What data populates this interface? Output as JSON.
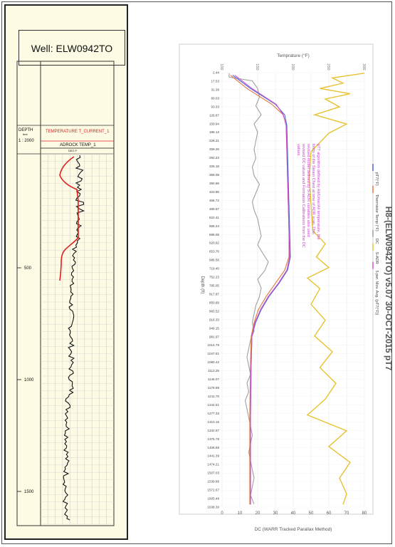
{
  "well_panel": {
    "title": "Well: ELW0942TO",
    "depth_label": "DEPTH",
    "depth_unit": "feet",
    "scale": "1 : 2000",
    "track_temp_label": "TEMPERATURE T_CURRENT_1",
    "track_adrock_label": "ADROCK TEMP_1",
    "track_adrock_sub": "DEG F",
    "depth_ticks": [
      "500",
      "1000",
      "1500"
    ],
    "colors": {
      "temp_curve": "#e02020",
      "adrock_curve": "#111111",
      "background": "#fdfbe4"
    }
  },
  "chart_panel": {
    "title": "H8-(ELW0942TO) v5.07  30-OCT-2015 pT7",
    "annotation": "pT7 algorithm defined by Ali/Umar/Ali temperature, the limits of the Steam Chest at time of ADR scan. This revised model defined by S-ADR variables also used revised DC values and Formation Calibrations from the DC values.",
    "top_axis_label": "Temprature (°F)",
    "bottom_axis_label": "DC (WARR Tracked Parallax Method)",
    "depth_axis_label": "Depth (ft)",
    "legend": [
      "pT7(°F)",
      "Thermistor Temp (°F)",
      "DC",
      "S-ADR",
      "5 per. Mov. Avg. (pT7(°F))"
    ],
    "colors": {
      "pt7": "#4a63d8",
      "thermistor": "#e0783a",
      "dc": "#a0a0a0",
      "sadr": "#e8c230",
      "mavg": "#cc55cc",
      "annotation": "#cc44cc",
      "grid": "#e6e6e6"
    }
  },
  "chart_data": {
    "type": "line",
    "orientation": "depth-vertical",
    "title": "H8-(ELW0942TO) v5.07  30-OCT-2015 pT7",
    "xlabel_top": "Temprature (°F)",
    "xlabel_bottom": "DC (WARR Tracked Parallax Method)",
    "ylabel": "Depth (ft)",
    "temp_ticks": [
      "100",
      "150",
      "200",
      "250",
      "300"
    ],
    "temp_range": [
      100,
      300
    ],
    "dc_ticks": [
      "0",
      "10",
      "20",
      "30",
      "40",
      "50",
      "60",
      "70",
      "80"
    ],
    "dc_range": [
      0,
      80
    ],
    "depth_ticks": [
      "2.44",
      "17.53",
      "31.36",
      "60.03",
      "93.33",
      "126.67",
      "159.94",
      "195.13",
      "226.21",
      "259.26",
      "292.23",
      "325.18",
      "358.09",
      "390.98",
      "423.86",
      "456.72",
      "489.57",
      "522.41",
      "555.24",
      "588.08",
      "620.92",
      "653.76",
      "686.58",
      "719.40",
      "752.23",
      "785.05",
      "817.87",
      "850.69",
      "883.52",
      "916.33",
      "949.15",
      "981.97",
      "1014.79",
      "1047.61",
      "1080.42",
      "1113.25",
      "1146.07",
      "1178.89",
      "1211.70",
      "1244.51",
      "1277.33",
      "1310.16",
      "1342.97",
      "1375.78",
      "1408.59",
      "1441.39",
      "1474.21",
      "1507.03",
      "1539.86",
      "1572.67",
      "1605.48",
      "1638.30"
    ],
    "depth_range": [
      0,
      1650
    ],
    "series": [
      {
        "name": "pT7(°F)",
        "axis": "temp",
        "depth": [
          10,
          60,
          120,
          160,
          200,
          300,
          400,
          500,
          600,
          700,
          750,
          800,
          850,
          900,
          950,
          1000,
          1100,
          1300,
          1500,
          1640
        ],
        "values": [
          115,
          140,
          175,
          188,
          191,
          192,
          193,
          194,
          195,
          196,
          192,
          180,
          166,
          155,
          147,
          142,
          141,
          140,
          140,
          140
        ]
      },
      {
        "name": "Thermistor Temp (°F)",
        "axis": "temp",
        "depth": [
          10,
          60,
          120,
          160,
          200,
          300,
          400,
          500,
          600,
          700,
          750,
          800,
          850,
          900,
          950,
          1000,
          1100,
          1300,
          1500,
          1640
        ],
        "values": [
          112,
          135,
          170,
          186,
          190,
          191,
          192,
          193,
          194,
          194,
          188,
          175,
          162,
          151,
          145,
          141,
          140,
          139,
          139,
          139
        ]
      },
      {
        "name": "5 per. Mov. Avg. (pT7(°F))",
        "axis": "temp",
        "depth": [
          10,
          60,
          120,
          160,
          200,
          300,
          400,
          500,
          600,
          700,
          750,
          800,
          850,
          900,
          950,
          1000,
          1100,
          1300,
          1500,
          1640
        ],
        "values": [
          118,
          142,
          176,
          186,
          190,
          191,
          192,
          193,
          194,
          195,
          191,
          179,
          165,
          154,
          146,
          142,
          141,
          140,
          140,
          140
        ]
      },
      {
        "name": "DC",
        "axis": "dc",
        "depth": [
          2,
          17,
          31,
          60,
          93,
          126,
          160,
          195,
          226,
          259,
          292,
          325,
          358,
          391,
          424,
          457,
          490,
          522,
          555,
          588,
          621,
          654,
          687,
          719,
          752,
          785,
          818,
          851,
          884,
          916,
          949,
          982,
          1015,
          1048,
          1080,
          1113,
          1146,
          1179,
          1212,
          1245,
          1277,
          1310,
          1343,
          1376,
          1409,
          1441,
          1474,
          1507,
          1540,
          1573,
          1605,
          1638
        ],
        "values": [
          4,
          4,
          17,
          20,
          21,
          19,
          22,
          18,
          20,
          19,
          18,
          19,
          17,
          18,
          21,
          19,
          17,
          18,
          20,
          21,
          22,
          20,
          23,
          26,
          24,
          20,
          22,
          21,
          19,
          18,
          17,
          18,
          16,
          15,
          14,
          15,
          16,
          14,
          15,
          13,
          14,
          15,
          16,
          17,
          16,
          15,
          16,
          17,
          18,
          17,
          16,
          18
        ]
      },
      {
        "name": "S-ADR",
        "axis": "dc",
        "depth": [
          2,
          20,
          40,
          60,
          80,
          100,
          130,
          160,
          195,
          230,
          300,
          400,
          500,
          600,
          650,
          700,
          740,
          780,
          820,
          880,
          940,
          1000,
          1060,
          1120,
          1180,
          1240,
          1300,
          1360,
          1420,
          1480,
          1540,
          1600,
          1640
        ],
        "values": [
          80,
          62,
          68,
          55,
          72,
          58,
          66,
          52,
          70,
          60,
          50,
          49,
          50,
          51,
          58,
          53,
          60,
          48,
          55,
          50,
          58,
          52,
          62,
          55,
          64,
          58,
          48,
          70,
          60,
          72,
          66,
          70,
          68
        ]
      }
    ]
  }
}
